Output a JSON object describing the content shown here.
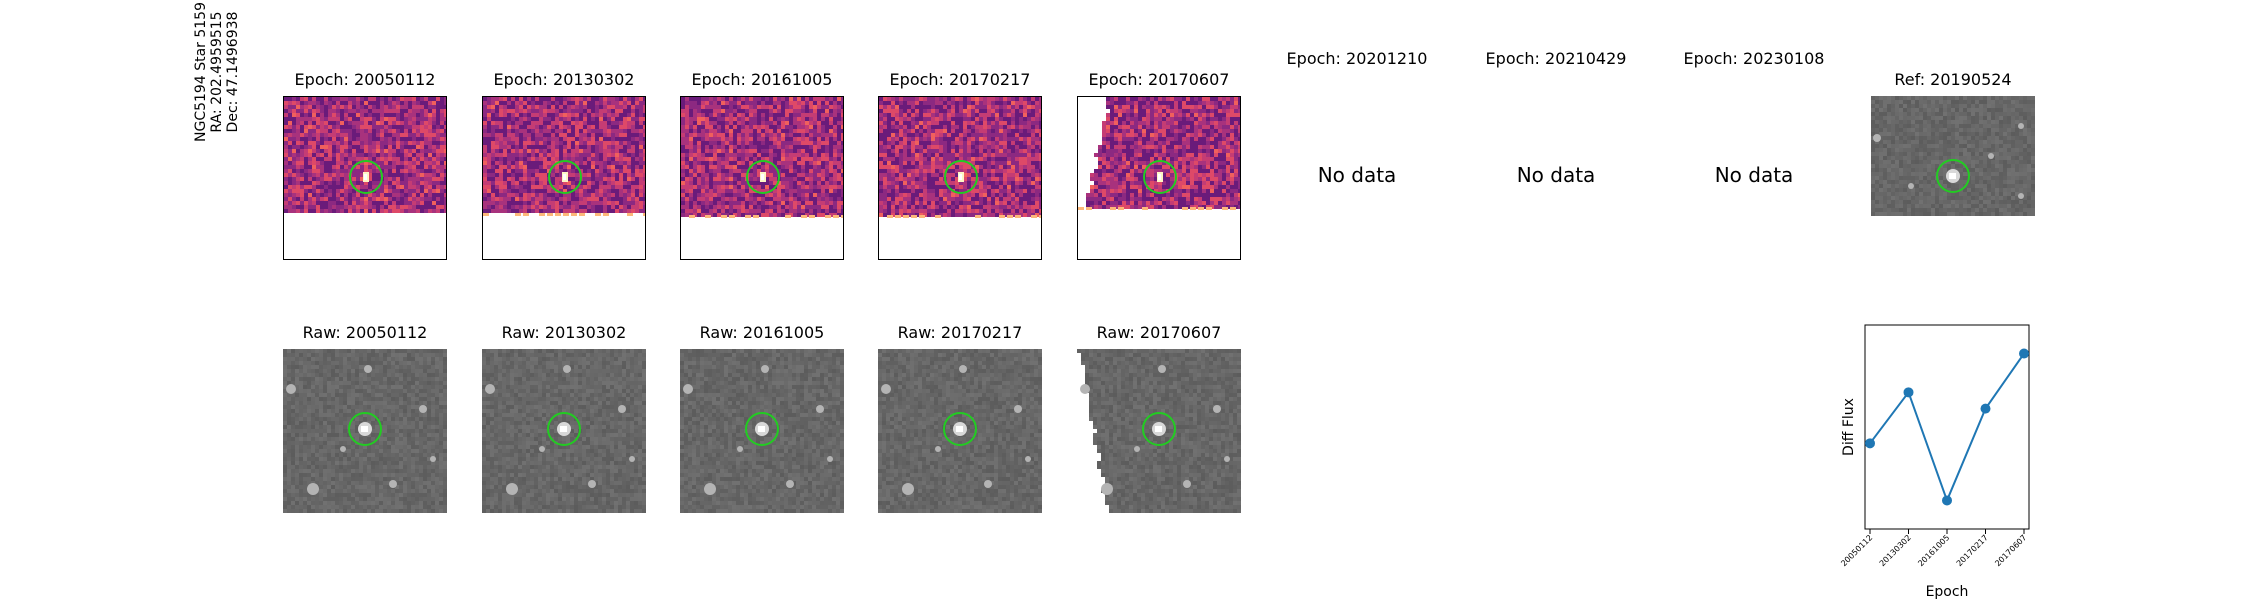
{
  "star_label": [
    "NGC5194 Star 5159",
    "RA: 202.4959515",
    "Dec: 47.1496938"
  ],
  "epochs": [
    "20050112",
    "20130302",
    "20161005",
    "20170217",
    "20170607"
  ],
  "titles": {
    "diff": [
      "Epoch: 20050112",
      "Epoch: 20130302",
      "Epoch: 20161005",
      "Epoch: 20170217",
      "Epoch: 20170607"
    ],
    "empty": [
      "Epoch: 20201210",
      "Epoch: 20210429",
      "Epoch: 20230108"
    ],
    "ref": "Ref: 20190524",
    "raw": [
      "Raw: 20050112",
      "Raw: 20130302",
      "Raw: 20161005",
      "Raw: 20170217",
      "Raw: 20170607"
    ]
  },
  "no_data_text": "No data",
  "colors": {
    "circle": "#22cc22",
    "line": "#1f77b4"
  },
  "chart_data": {
    "type": "line",
    "x": [
      "20050112",
      "20130302",
      "20161005",
      "20170217",
      "20170607"
    ],
    "values": [
      0.42,
      0.67,
      0.14,
      0.59,
      0.86
    ],
    "title": "",
    "xlabel": "Epoch",
    "ylabel": "Diff Flux",
    "ylim": [
      0,
      1
    ],
    "grid": false,
    "y_tick_labels_shown": false
  }
}
